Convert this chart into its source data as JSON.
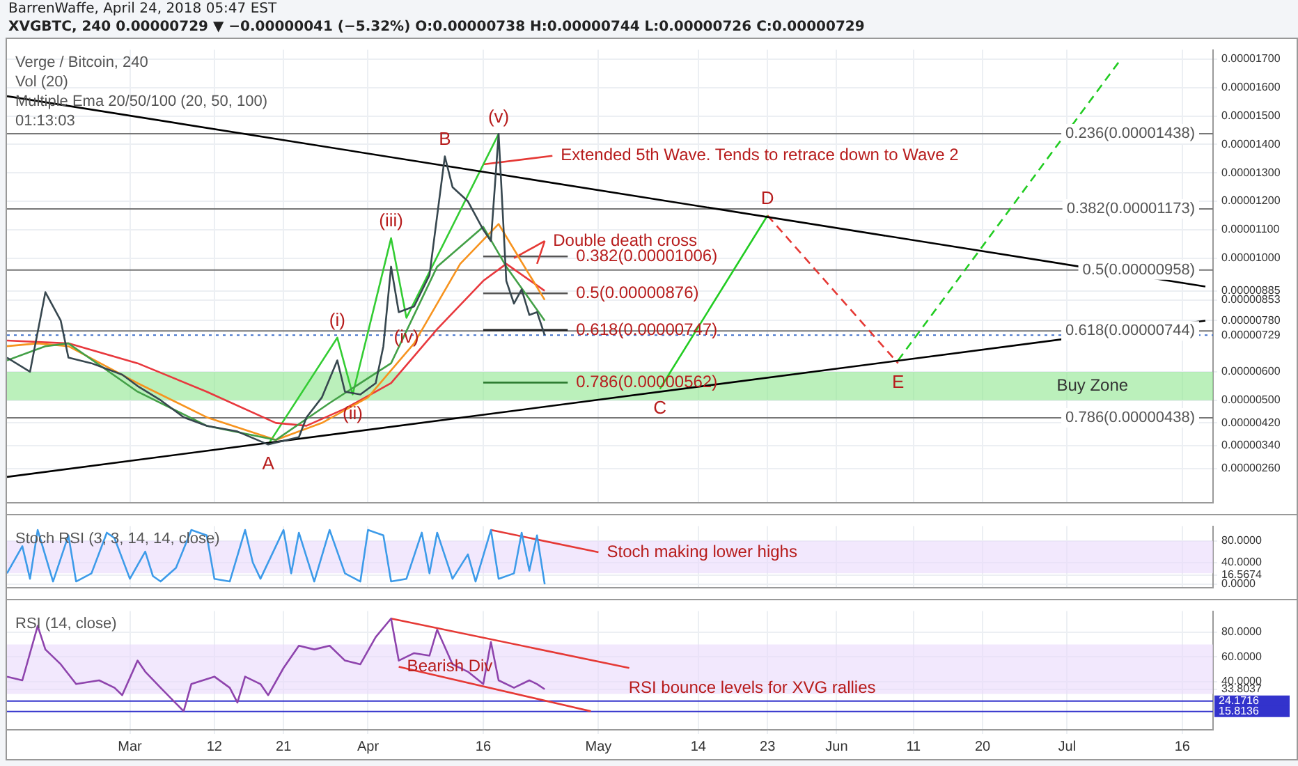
{
  "chart_data": [
    {
      "type": "line",
      "subtitle": "BarrenWaffe, April 24, 2018 05:47 EST",
      "title": "XVGBTC, 240 0.00000729 ▼ −0.00000041 (−5.32%) O:0.00000738 H:0.00000744 L:0.00000726 C:0.00000729",
      "xlim": [
        "2018-02-13",
        "2018-07-20"
      ],
      "xticks": [
        {
          "value": "2018-03-01",
          "label": null
        },
        {
          "value": "2018-03-12",
          "label": null
        },
        {
          "value": "2018-03-21",
          "label": null
        },
        {
          "value": "2018-04-01",
          "label": null
        },
        {
          "value": "2018-04-16",
          "label": null
        },
        {
          "value": "2018-05-01",
          "label": null
        },
        {
          "value": "2018-05-14",
          "label": null
        },
        {
          "value": "2018-05-23",
          "label": null
        },
        {
          "value": "2018-06-01",
          "label": null
        },
        {
          "value": "2018-06-11",
          "label": null
        },
        {
          "value": "2018-06-20",
          "label": null
        },
        {
          "value": "2018-07-01",
          "label": null
        },
        {
          "value": "2018-07-16",
          "label": null
        }
      ],
      "ylim": [
        1.38e-06,
        1.733e-05
      ],
      "yticks": [
        {
          "value": 1.7e-05,
          "label": "0.00001700"
        },
        {
          "value": 1.6e-05,
          "label": "0.00001600"
        },
        {
          "value": 1.5e-05,
          "label": "0.00001500"
        },
        {
          "value": 1.4e-05,
          "label": "0.00001400"
        },
        {
          "value": 1.3e-05,
          "label": "0.00001300"
        },
        {
          "value": 1.2e-05,
          "label": "0.00001200"
        },
        {
          "value": 1.1e-05,
          "label": "0.00001100"
        },
        {
          "value": 1e-05,
          "label": "0.00001000"
        },
        {
          "value": 8.85e-06,
          "label": "0.00000885"
        },
        {
          "value": 8.53e-06,
          "label": "0.00000853"
        },
        {
          "value": 7.8e-06,
          "label": "0.00000780"
        },
        {
          "value": 7.29e-06,
          "label": "0.00000729"
        },
        {
          "value": 6e-06,
          "label": "0.00000600"
        },
        {
          "value": 5e-06,
          "label": "0.00000500"
        },
        {
          "value": 4.2e-06,
          "label": "0.00000420"
        },
        {
          "value": 3.4e-06,
          "label": "0.00000340"
        },
        {
          "value": 2.6e-06,
          "label": "0.00000260"
        }
      ],
      "tick_labels": "y",
      "grid": true,
      "marker": "none",
      "series": [
        {
          "color": "#37474f",
          "x": [
            "2018-02-13",
            "2018-02-16",
            "2018-02-18",
            "2018-02-20",
            "2018-02-21",
            "2018-02-24",
            "2018-02-28",
            "2018-03-02",
            "2018-03-05",
            "2018-03-08",
            "2018-03-11",
            "2018-03-15",
            "2018-03-19",
            "2018-03-23",
            "2018-03-24",
            "2018-03-26",
            "2018-03-28",
            "2018-03-29",
            "2018-03-31",
            "2018-04-02",
            "2018-04-03",
            "2018-04-04",
            "2018-04-05",
            "2018-04-07",
            "2018-04-09",
            "2018-04-11",
            "2018-04-12",
            "2018-04-14",
            "2018-04-16",
            "2018-04-17",
            "2018-04-18",
            "2018-04-19",
            "2018-04-20",
            "2018-04-21",
            "2018-04-22",
            "2018-04-23",
            "2018-04-24"
          ],
          "values": [
            6.5e-06,
            6e-06,
            8.8e-06,
            7.8e-06,
            6.5e-06,
            6.3e-06,
            5.9e-06,
            5.5e-06,
            5e-06,
            4.4e-06,
            4.1e-06,
            3.9e-06,
            3.44e-06,
            3.7e-06,
            4.4e-06,
            5.1e-06,
            6.4e-06,
            5.3e-06,
            5.2e-06,
            5.6e-06,
            6.9e-06,
            9.7e-06,
            8.1e-06,
            8.3e-06,
            9.4e-06,
            1.358e-05,
            1.25e-05,
            1.2e-05,
            1.1e-05,
            1.06e-05,
            1.437e-05,
            9.2e-06,
            8.4e-06,
            8.9e-06,
            8e-06,
            8.1e-06,
            7.29e-06
          ]
        },
        {
          "color": "#43a047",
          "x": [
            "2018-02-13",
            "2018-02-18",
            "2018-02-21",
            "2018-03-02",
            "2018-03-11",
            "2018-03-20",
            "2018-03-27",
            "2018-04-04",
            "2018-04-10",
            "2018-04-16",
            "2018-04-19",
            "2018-04-24"
          ],
          "values": [
            6.4e-06,
            6.9e-06,
            7e-06,
            5.3e-06,
            4.1e-06,
            3.6e-06,
            4.9e-06,
            6.3e-06,
            9.7e-06,
            1.11e-05,
            9.7e-06,
            7.8e-06
          ]
        },
        {
          "color": "#f7931e",
          "x": [
            "2018-02-13",
            "2018-02-17",
            "2018-02-21",
            "2018-03-02",
            "2018-03-11",
            "2018-03-20",
            "2018-03-26",
            "2018-04-01",
            "2018-04-07",
            "2018-04-13",
            "2018-04-18",
            "2018-04-24"
          ],
          "values": [
            6.9e-06,
            7e-06,
            6.9e-06,
            5.6e-06,
            4.4e-06,
            3.6e-06,
            4.2e-06,
            5.1e-06,
            7e-06,
            9.8e-06,
            1.12e-05,
            8.53e-06
          ]
        },
        {
          "color": "#e8383d",
          "x": [
            "2018-02-13",
            "2018-02-21",
            "2018-03-02",
            "2018-03-11",
            "2018-03-20",
            "2018-03-24",
            "2018-03-29",
            "2018-04-04",
            "2018-04-10",
            "2018-04-16",
            "2018-04-19",
            "2018-04-24"
          ],
          "values": [
            7.1e-06,
            7e-06,
            6.3e-06,
            5.3e-06,
            4.2e-06,
            4.1e-06,
            4.7e-06,
            5.6e-06,
            7.5e-06,
            9.2e-06,
            9.8e-06,
            8.85e-06
          ]
        },
        {
          "color": "#000000",
          "x": [
            "2018-02-13",
            "2018-07-19"
          ],
          "values": [
            1.57e-05,
            9e-06
          ]
        },
        {
          "color": "#000000",
          "x": [
            "2018-02-13",
            "2018-07-19"
          ],
          "values": [
            2.3e-06,
            7.8e-06
          ]
        },
        {
          "color": "#33cc33",
          "x": [
            "2018-03-19",
            "2018-03-28",
            "2018-03-30",
            "2018-04-04",
            "2018-04-06",
            "2018-04-18"
          ],
          "values": [
            3.44e-06,
            7.2e-06,
            5.2e-06,
            1.07e-05,
            7.9e-06,
            1.437e-05
          ]
        },
        {
          "color": "#22cc22",
          "x": [
            "2018-05-09",
            "2018-05-23"
          ],
          "values": [
            5.4e-06,
            1.15e-05
          ]
        },
        {
          "color": "#e53935",
          "line_style": "dashed",
          "x": [
            "2018-05-23",
            "2018-06-09"
          ],
          "values": [
            1.15e-05,
            6.3e-06
          ]
        },
        {
          "color": "#22cc22",
          "line_style": "dashed",
          "x": [
            "2018-06-09",
            "2018-07-08"
          ],
          "values": [
            6.4e-06,
            1.7e-05
          ]
        },
        {
          "color": "#e53935",
          "x": [
            "2018-04-25",
            "2018-04-16"
          ],
          "values": [
            1.36e-05,
            1.33e-05
          ]
        },
        {
          "color": "#e53935",
          "x": [
            "2018-04-24",
            "2018-04-20"
          ],
          "values": [
            1.06e-05,
            1e-05
          ]
        },
        {
          "color": "#e53935",
          "x": [
            "2018-04-24",
            "2018-04-23"
          ],
          "values": [
            1.06e-05,
            9.8e-06
          ]
        },
        {
          "color": "#555555",
          "x": [
            "2018-04-16",
            "2018-04-27"
          ],
          "values": [
            1.006e-05,
            1.006e-05
          ]
        },
        {
          "color": "#555555",
          "x": [
            "2018-04-16",
            "2018-04-27"
          ],
          "values": [
            8.76e-06,
            8.76e-06
          ]
        },
        {
          "color": "#222222",
          "x": [
            "2018-04-16",
            "2018-04-27"
          ],
          "values": [
            7.47e-06,
            7.47e-06
          ]
        },
        {
          "color": "#2e7d32",
          "x": [
            "2018-04-16",
            "2018-04-27"
          ],
          "values": [
            5.62e-06,
            5.62e-06
          ]
        }
      ],
      "ref_lines": [
        {
          "axis": "y",
          "value": 1.438e-05,
          "label": "0.236(0.00001438)",
          "color": "#777777"
        },
        {
          "axis": "y",
          "value": 1.173e-05,
          "label": "0.382(0.00001173)",
          "color": "#777777"
        },
        {
          "axis": "y",
          "value": 9.58e-06,
          "label": "0.5(0.00000958)",
          "color": "#777777"
        },
        {
          "axis": "y",
          "value": 7.44e-06,
          "label": "0.618(0.00000744)",
          "color": "#777777"
        },
        {
          "axis": "y",
          "value": 4.38e-06,
          "label": "0.786(0.00000438)",
          "color": "#777777"
        },
        {
          "axis": "y",
          "value": 7.29e-06,
          "color": "#3d6ec9",
          "line_style": "dotted"
        }
      ],
      "bands": [
        {
          "axis": "y",
          "from": 5e-06,
          "to": 6e-06,
          "label": "Buy Zone",
          "color": "#8ee68e"
        }
      ],
      "annotations": [
        "Verge / Bitcoin, 240",
        "Vol (20)",
        "Multiple Ema 20/50/100 (20, 50, 100)",
        "01:13:03",
        {
          "text": "A",
          "x": "2018-03-19",
          "y": 3.44e-06
        },
        {
          "text": "B",
          "x": "2018-04-11",
          "y": 1.358e-05
        },
        {
          "text": "C",
          "x": "2018-05-09",
          "y": 5.4e-06
        },
        {
          "text": "D",
          "x": "2018-05-23",
          "y": 1.15e-05
        },
        {
          "text": "E",
          "x": "2018-06-09",
          "y": 6.3e-06
        },
        {
          "text": "(i)",
          "x": "2018-03-28",
          "y": 7.2e-06
        },
        {
          "text": "(ii)",
          "x": "2018-03-30",
          "y": 5.2e-06
        },
        {
          "text": "(iii)",
          "x": "2018-04-04",
          "y": 1.07e-05
        },
        {
          "text": "(iv)",
          "x": "2018-04-06",
          "y": 7.9e-06
        },
        {
          "text": "(v)",
          "x": "2018-04-18",
          "y": 1.437e-05
        },
        {
          "text": "Extended 5th Wave. Tends to retrace down to Wave 2",
          "x": "2018-04-25",
          "y": 1.36e-05
        },
        {
          "text": "Double death cross",
          "x": "2018-04-24",
          "y": 1.06e-05
        },
        {
          "text": "0.382(0.00001006)",
          "x": "2018-04-27",
          "y": 1.006e-05
        },
        {
          "text": "0.5(0.00000876)",
          "x": "2018-04-27",
          "y": 8.76e-06
        },
        {
          "text": "0.618(0.00000747)",
          "x": "2018-04-27",
          "y": 7.47e-06
        },
        {
          "text": "0.786(0.00000562)",
          "x": "2018-04-27",
          "y": 5.62e-06
        }
      ]
    },
    {
      "type": "line",
      "xlim": [
        "2018-02-13",
        "2018-07-20"
      ],
      "xticks": [
        {
          "value": "2018-03-01",
          "label": null
        },
        {
          "value": "2018-03-12",
          "label": null
        },
        {
          "value": "2018-03-21",
          "label": null
        },
        {
          "value": "2018-04-01",
          "label": null
        },
        {
          "value": "2018-04-16",
          "label": null
        },
        {
          "value": "2018-05-01",
          "label": null
        },
        {
          "value": "2018-05-14",
          "label": null
        },
        {
          "value": "2018-05-23",
          "label": null
        },
        {
          "value": "2018-06-01",
          "label": null
        },
        {
          "value": "2018-06-11",
          "label": null
        },
        {
          "value": "2018-06-20",
          "label": null
        },
        {
          "value": "2018-07-01",
          "label": null
        },
        {
          "value": "2018-07-16",
          "label": null
        }
      ],
      "ylim": [
        -7,
        107
      ],
      "yticks": [
        {
          "value": 80,
          "label": "80.0000"
        },
        {
          "value": 40,
          "label": "40.0000"
        },
        {
          "value": 16.5674,
          "label": "16.5674"
        },
        {
          "value": 0,
          "label": "0.0000"
        }
      ],
      "tick_labels": "y",
      "grid": true,
      "marker": "none",
      "series": [
        {
          "color": "#3d9be9",
          "x": [
            "2018-02-13",
            "2018-02-15",
            "2018-02-16",
            "2018-02-17",
            "2018-02-19",
            "2018-02-21",
            "2018-02-22",
            "2018-02-24",
            "2018-02-26",
            "2018-02-27",
            "2018-03-01",
            "2018-03-03",
            "2018-03-04",
            "2018-03-05",
            "2018-03-07",
            "2018-03-09",
            "2018-03-11",
            "2018-03-12",
            "2018-03-14",
            "2018-03-16",
            "2018-03-17",
            "2018-03-18",
            "2018-03-21",
            "2018-03-22",
            "2018-03-23",
            "2018-03-25",
            "2018-03-27",
            "2018-03-29",
            "2018-03-31",
            "2018-04-01",
            "2018-04-03",
            "2018-04-04",
            "2018-04-06",
            "2018-04-08",
            "2018-04-09",
            "2018-04-10",
            "2018-04-12",
            "2018-04-14",
            "2018-04-15",
            "2018-04-17",
            "2018-04-18",
            "2018-04-20",
            "2018-04-21",
            "2018-04-22",
            "2018-04-23",
            "2018-04-24"
          ],
          "values": [
            20,
            70,
            10,
            100,
            5,
            90,
            5,
            20,
            95,
            85,
            10,
            60,
            15,
            5,
            30,
            100,
            90,
            10,
            5,
            100,
            40,
            10,
            100,
            20,
            95,
            5,
            100,
            20,
            5,
            100,
            90,
            5,
            10,
            95,
            20,
            95,
            10,
            55,
            5,
            100,
            10,
            20,
            95,
            25,
            90,
            0
          ]
        },
        {
          "color": "#e53935",
          "x": [
            "2018-04-17",
            "2018-05-01"
          ],
          "values": [
            100,
            59
          ]
        }
      ],
      "bands": [
        {
          "axis": "y",
          "from": 20,
          "to": 80,
          "color": "#ead9fb"
        }
      ],
      "annotations": [
        "Stoch RSI (3, 3, 14, 14, close)",
        {
          "text": "Stoch making lower highs",
          "x": "2018-05-01",
          "y": 59
        }
      ]
    },
    {
      "type": "line",
      "xlim": [
        "2018-02-13",
        "2018-07-20"
      ],
      "xticks": [
        {
          "value": "2018-03-01",
          "label": "Mar"
        },
        {
          "value": "2018-03-12",
          "label": "12"
        },
        {
          "value": "2018-03-21",
          "label": "21"
        },
        {
          "value": "2018-04-01",
          "label": "Apr"
        },
        {
          "value": "2018-04-16",
          "label": "16"
        },
        {
          "value": "2018-05-01",
          "label": "May"
        },
        {
          "value": "2018-05-14",
          "label": "14"
        },
        {
          "value": "2018-05-23",
          "label": "23"
        },
        {
          "value": "2018-06-01",
          "label": "Jun"
        },
        {
          "value": "2018-06-11",
          "label": "11"
        },
        {
          "value": "2018-06-20",
          "label": "20"
        },
        {
          "value": "2018-07-01",
          "label": "Jul"
        },
        {
          "value": "2018-07-16",
          "label": "16"
        }
      ],
      "ylim": [
        1,
        97
      ],
      "yticks": [
        {
          "value": 80,
          "label": "80.0000"
        },
        {
          "value": 60,
          "label": "60.0000"
        },
        {
          "value": 40,
          "label": "40.0000"
        },
        {
          "value": 33.8037,
          "label": "33.8037"
        }
      ],
      "grid": true,
      "marker": "none",
      "series": [
        {
          "color": "#8e44ad",
          "x": [
            "2018-02-13",
            "2018-02-15",
            "2018-02-17",
            "2018-02-18",
            "2018-02-20",
            "2018-02-22",
            "2018-02-25",
            "2018-02-27",
            "2018-02-28",
            "2018-03-02",
            "2018-03-03",
            "2018-03-05",
            "2018-03-08",
            "2018-03-09",
            "2018-03-12",
            "2018-03-14",
            "2018-03-15",
            "2018-03-16",
            "2018-03-18",
            "2018-03-19",
            "2018-03-21",
            "2018-03-23",
            "2018-03-25",
            "2018-03-27",
            "2018-03-29",
            "2018-03-31",
            "2018-04-02",
            "2018-04-04",
            "2018-04-05",
            "2018-04-07",
            "2018-04-09",
            "2018-04-10",
            "2018-04-12",
            "2018-04-14",
            "2018-04-16",
            "2018-04-17",
            "2018-04-18",
            "2018-04-20",
            "2018-04-22",
            "2018-04-23",
            "2018-04-24"
          ],
          "values": [
            44,
            41,
            85,
            66,
            54,
            38,
            41,
            35,
            29,
            57,
            48,
            35,
            16,
            38,
            44,
            35,
            23,
            44,
            38,
            29,
            51,
            69,
            66,
            69,
            57,
            54,
            76,
            91,
            57,
            63,
            61,
            82,
            54,
            48,
            38,
            72,
            41,
            35,
            41,
            38,
            33.8037
          ]
        },
        {
          "color": "#e53935",
          "x": [
            "2018-04-04",
            "2018-05-05"
          ],
          "values": [
            91,
            51
          ]
        },
        {
          "color": "#e53935",
          "x": [
            "2018-04-05",
            "2018-04-30"
          ],
          "values": [
            52,
            16
          ]
        }
      ],
      "bands": [
        {
          "axis": "y",
          "from": 30,
          "to": 70,
          "color": "#ead9fb"
        }
      ],
      "ref_lines": [
        {
          "axis": "y",
          "value": 24.1716,
          "label": "24.1716",
          "color": "#3333cc"
        },
        {
          "axis": "y",
          "value": 15.8136,
          "label": "15.8136",
          "color": "#3333cc"
        }
      ],
      "annotations": [
        "RSI (14, close)",
        {
          "text": "Bearish Div",
          "x": "2018-04-05",
          "y": 52
        },
        {
          "text": "RSI bounce levels for XVG rallies",
          "x": "2018-05-21",
          "y": 24.1716
        }
      ]
    }
  ]
}
